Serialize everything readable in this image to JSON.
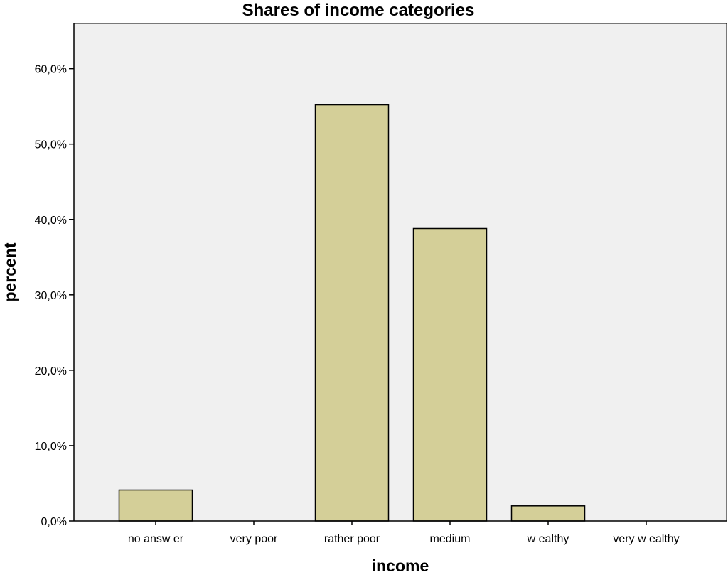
{
  "chart_data": {
    "type": "bar",
    "title": "Shares of income categories",
    "xlabel": "income",
    "ylabel": "percent",
    "categories": [
      "no answ er",
      "very poor",
      "rather poor",
      "medium",
      "w ealthy",
      "very w ealthy"
    ],
    "values": [
      4.1,
      0.0,
      55.2,
      38.8,
      2.0,
      0.0
    ],
    "ylim": [
      0,
      66
    ],
    "yticks": [
      0,
      10,
      20,
      30,
      40,
      50,
      60
    ],
    "ytick_labels": [
      "0,0%",
      "10,0%",
      "20,0%",
      "30,0%",
      "40,0%",
      "50,0%",
      "60,0%"
    ],
    "grid": false,
    "legend": "none",
    "colors": {
      "plot_background": "#f0f0f0",
      "bar_fill": "#d4cf98",
      "bar_stroke": "#000000",
      "axis": "#000000"
    }
  }
}
